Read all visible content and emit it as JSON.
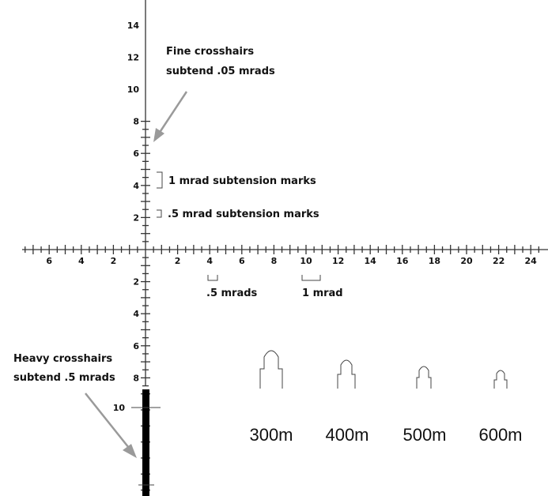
{
  "vertical_scale": {
    "up_labels": [
      "14",
      "12",
      "10",
      "8",
      "6",
      "4",
      "2"
    ],
    "down_labels": [
      "2",
      "4",
      "6",
      "8"
    ],
    "heavy_label": "10"
  },
  "horizontal_scale": {
    "left_labels": [
      "6",
      "4",
      "2"
    ],
    "right_labels": [
      "2",
      "4",
      "6",
      "8",
      "10",
      "12",
      "14",
      "16",
      "18",
      "20",
      "22",
      "24"
    ]
  },
  "annotations": {
    "fine_line1": "Fine crosshairs",
    "fine_line2": "subtend .05 mrads",
    "mark_1mrad": "1 mrad subtension marks",
    "mark_half_mrad": ".5 mrad subtension marks",
    "below_half": ".5 mrads",
    "below_one": "1 mrad",
    "heavy_line1": "Heavy crosshairs",
    "heavy_line2": "subtend .5 mrads"
  },
  "ranges": [
    "300m",
    "400m",
    "500m",
    "600m"
  ]
}
